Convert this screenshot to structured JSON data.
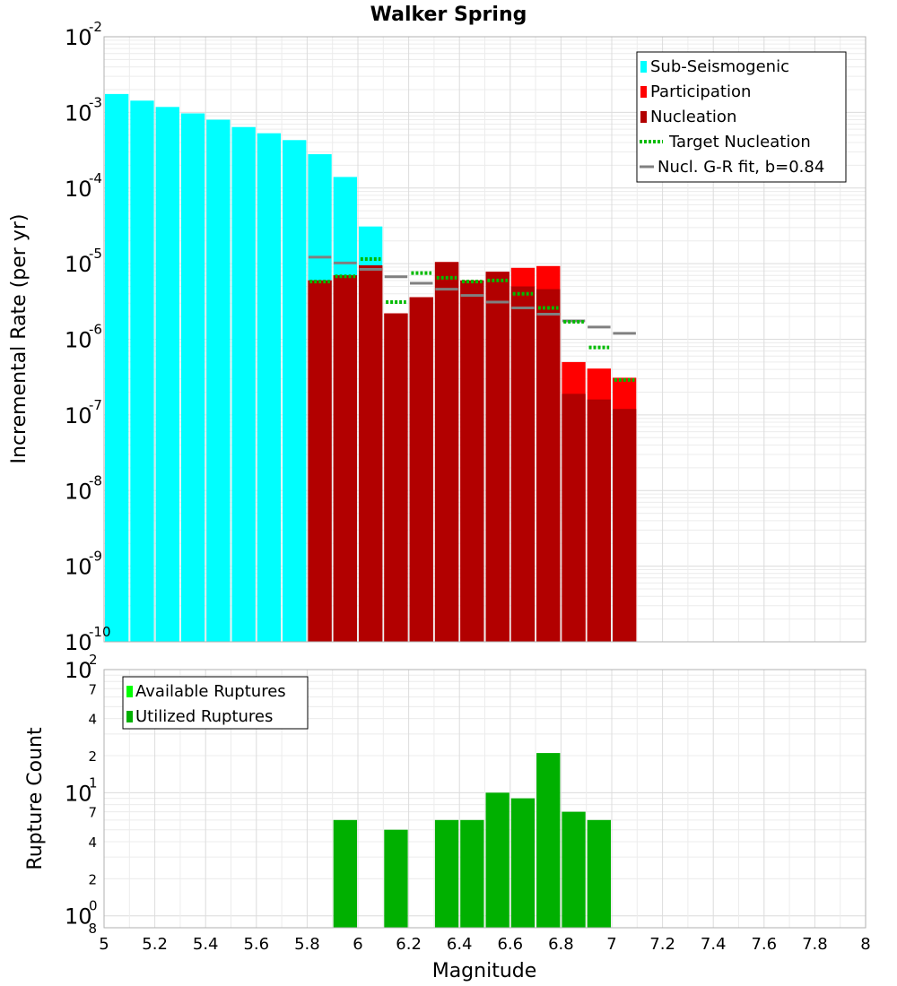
{
  "chart_data": [
    {
      "type": "bar",
      "title": "Walker Spring",
      "xlabel": "",
      "ylabel": "Incremental Rate (per yr)",
      "xlim": [
        5,
        8
      ],
      "ylim": [
        1e-10,
        0.01
      ],
      "yscale": "log",
      "y_exponent_labels": [
        "-2",
        "-3",
        "-4",
        "-5",
        "-6",
        "-7",
        "-8",
        "-9",
        "-10"
      ],
      "y_exponent_base": "10",
      "legend": {
        "position": "top-right",
        "entries": [
          {
            "label": "Sub-Seismogenic",
            "color": "#00FFFF",
            "style": "box"
          },
          {
            "label": "Participation",
            "color": "#FF0000",
            "style": "box"
          },
          {
            "label": "Nucleation",
            "color": "#B20000",
            "style": "box"
          },
          {
            "label": "Target Nucleation",
            "color": "#00BB00",
            "style": "dotted"
          },
          {
            "label": "Nucl. G-R fit, b=0.84",
            "color": "#808080",
            "style": "line"
          }
        ]
      },
      "bin_width": 0.1,
      "series": [
        {
          "name": "Sub-Seismogenic",
          "color": "#00FFFF",
          "x": [
            5.05,
            5.15,
            5.25,
            5.35,
            5.45,
            5.55,
            5.65,
            5.75,
            5.85,
            5.95,
            6.05
          ],
          "values": [
            0.00175,
            0.00143,
            0.00118,
            0.00097,
            0.0008,
            0.00064,
            0.00053,
            0.00043,
            0.00028,
            0.00014,
            3.1e-05
          ]
        },
        {
          "name": "Participation",
          "color": "#FF0000",
          "x": [
            5.85,
            5.95,
            6.05,
            6.15,
            6.25,
            6.35,
            6.45,
            6.55,
            6.65,
            6.75,
            6.85,
            6.95,
            7.05
          ],
          "values": [
            6e-06,
            7e-06,
            9.5e-06,
            2.2e-06,
            3.6e-06,
            1.05e-05,
            6e-06,
            7.8e-06,
            8.8e-06,
            9.3e-06,
            5e-07,
            4.1e-07,
            3.1e-07
          ]
        },
        {
          "name": "Nucleation",
          "color": "#B20000",
          "x": [
            5.85,
            5.95,
            6.05,
            6.15,
            6.25,
            6.35,
            6.45,
            6.55,
            6.65,
            6.75,
            6.85,
            6.95,
            7.05
          ],
          "values": [
            6e-06,
            7e-06,
            9.5e-06,
            2.2e-06,
            3.6e-06,
            1.05e-05,
            6e-06,
            7.8e-06,
            5e-06,
            4.6e-06,
            1.9e-07,
            1.6e-07,
            1.2e-07
          ]
        },
        {
          "name": "Target Nucleation",
          "color": "#00BB00",
          "style": "dotted",
          "x": [
            5.85,
            5.95,
            6.05,
            6.15,
            6.25,
            6.35,
            6.45,
            6.55,
            6.65,
            6.75,
            6.85,
            6.95,
            7.05
          ],
          "values": [
            5.8e-06,
            6.8e-06,
            1.15e-05,
            3.1e-06,
            7.5e-06,
            6.5e-06,
            5.8e-06,
            6e-06,
            4e-06,
            2.6e-06,
            1.7e-06,
            7.8e-07,
            2.9e-07
          ]
        },
        {
          "name": "Nucl. G-R fit, b=0.84",
          "color": "#808080",
          "style": "segment",
          "x": [
            5.85,
            5.95,
            6.05,
            6.15,
            6.25,
            6.35,
            6.45,
            6.55,
            6.65,
            6.75,
            6.85,
            6.95,
            7.05
          ],
          "values": [
            1.22e-05,
            1.02e-05,
            8.4e-06,
            6.7e-06,
            5.5e-06,
            4.6e-06,
            3.8e-06,
            3.1e-06,
            2.6e-06,
            2.15e-06,
            1.75e-06,
            1.45e-06,
            1.2e-06
          ]
        }
      ]
    },
    {
      "type": "bar",
      "title": "",
      "xlabel": "Magnitude",
      "ylabel": "Rupture Count",
      "xlim": [
        5,
        8
      ],
      "ylim": [
        0.8,
        100
      ],
      "yscale": "log",
      "x_ticks": [
        "5",
        "5.2",
        "5.4",
        "5.6",
        "5.8",
        "6",
        "6.2",
        "6.4",
        "6.6",
        "6.8",
        "7",
        "7.2",
        "7.4",
        "7.6",
        "7.8",
        "8"
      ],
      "y_decade_labels": [
        {
          "base": "10",
          "exp": "2"
        },
        {
          "base": "10",
          "exp": "1"
        },
        {
          "base": "10",
          "exp": "0"
        }
      ],
      "y_minor_labels": [
        "7",
        "4",
        "2",
        "7",
        "4",
        "2",
        "8"
      ],
      "legend": {
        "position": "top-left",
        "entries": [
          {
            "label": "Available Ruptures",
            "color": "#00FF00",
            "style": "box"
          },
          {
            "label": "Utilized Ruptures",
            "color": "#00B000",
            "style": "box"
          }
        ]
      },
      "bin_width": 0.1,
      "series": [
        {
          "name": "Utilized Ruptures",
          "color": "#00B000",
          "x": [
            5.95,
            6.15,
            6.35,
            6.45,
            6.55,
            6.65,
            6.75,
            6.85,
            6.95
          ],
          "values": [
            6,
            5,
            6,
            6,
            10,
            9,
            21,
            7,
            6
          ]
        }
      ]
    }
  ]
}
